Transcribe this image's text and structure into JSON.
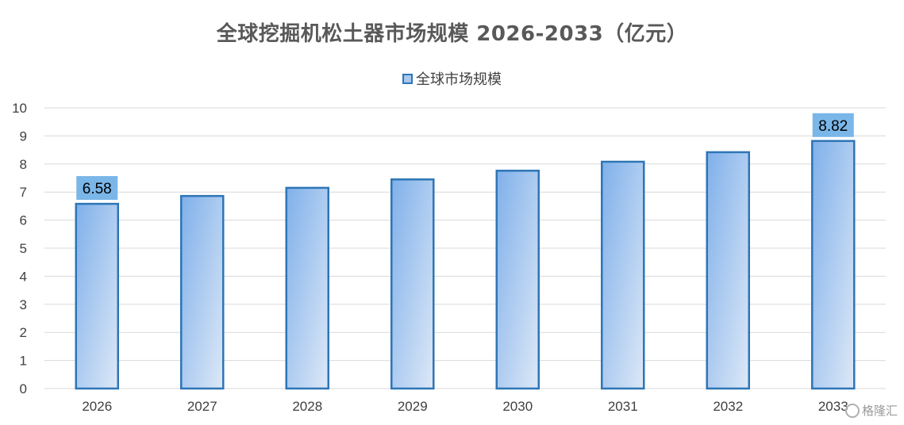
{
  "chart_data": {
    "type": "bar",
    "title": "全球挖掘机松土器市场规模 2026-2033（亿元）",
    "xlabel": "",
    "ylabel": "",
    "categories": [
      "2026",
      "2027",
      "2028",
      "2029",
      "2030",
      "2031",
      "2032",
      "2033"
    ],
    "series": [
      {
        "name": "全球市场规模",
        "values": [
          6.58,
          6.86,
          7.15,
          7.45,
          7.76,
          8.08,
          8.42,
          8.82
        ],
        "color_fill_start": "#7fb0ea",
        "color_fill_end": "#dde8f7",
        "color_border": "#2e75b6"
      }
    ],
    "data_labels": [
      {
        "category": "2026",
        "text": "6.58"
      },
      {
        "category": "2033",
        "text": "8.82"
      }
    ],
    "data_label_background": "#7ab6e8",
    "ylim": [
      0,
      10
    ],
    "y_ticks": [
      "0",
      "1",
      "2",
      "3",
      "4",
      "5",
      "6",
      "7",
      "8",
      "9",
      "10"
    ],
    "grid": true,
    "grid_color": "#d9d9d9",
    "legend_position": "top-center"
  },
  "watermark": {
    "text": "格隆汇",
    "icon": "gelonghui-logo-icon"
  }
}
